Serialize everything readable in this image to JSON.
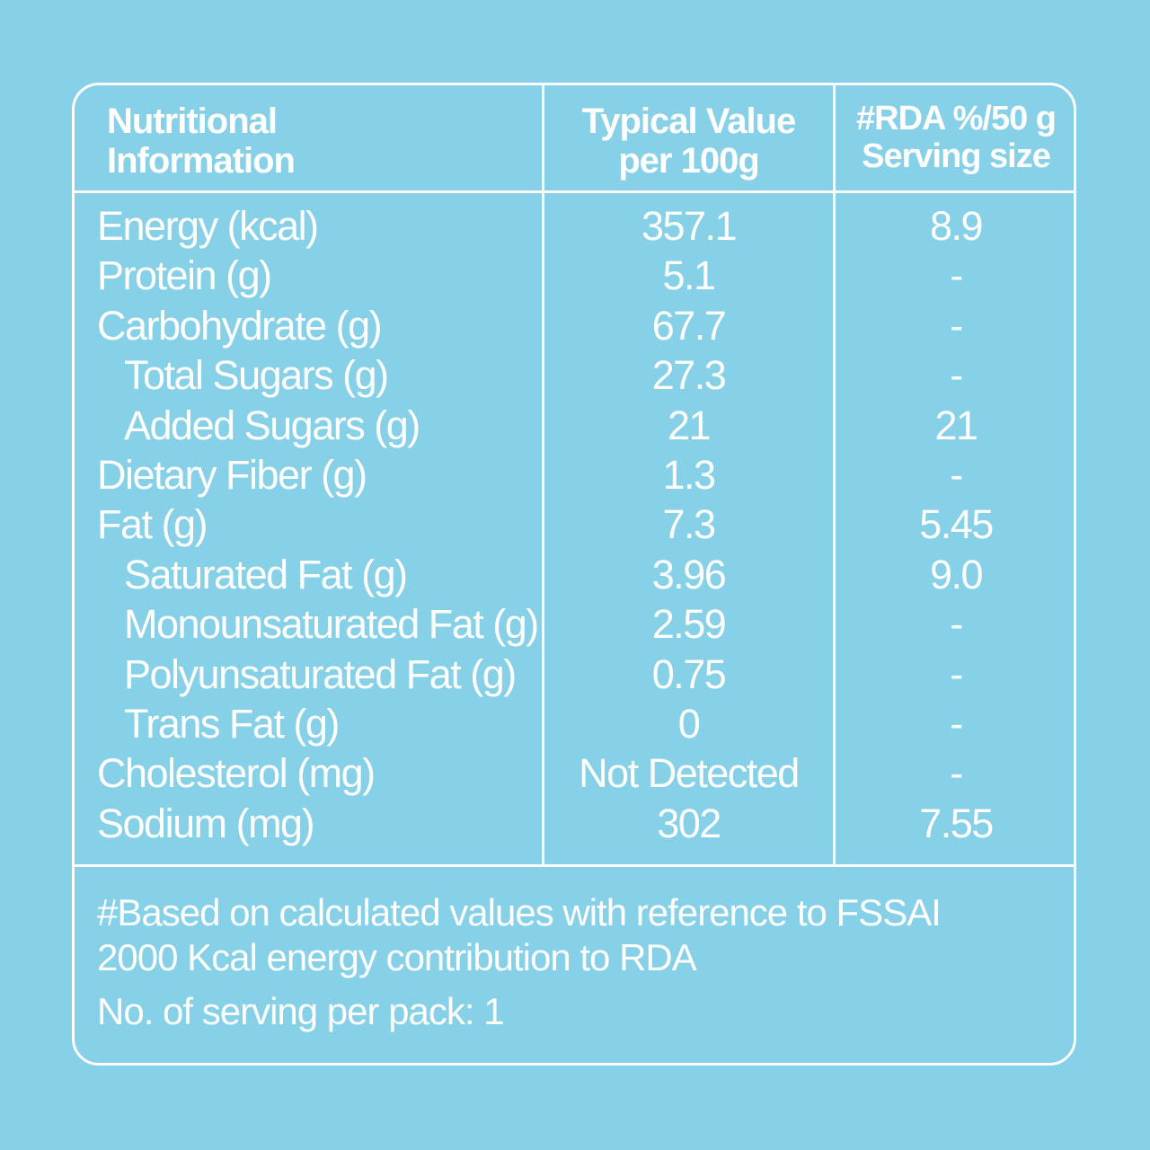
{
  "header": {
    "col1": [
      "Nutritional",
      "Information"
    ],
    "col2": [
      "Typical Value",
      "per 100g"
    ],
    "col3": [
      "#RDA %/50 g",
      "Serving size"
    ]
  },
  "rows": [
    {
      "name": "Energy (kcal)",
      "value": "357.1",
      "rda": "8.9",
      "indent": false
    },
    {
      "name": "Protein (g)",
      "value": "5.1",
      "rda": "-",
      "indent": false
    },
    {
      "name": "Carbohydrate (g)",
      "value": "67.7",
      "rda": "-",
      "indent": false
    },
    {
      "name": "Total Sugars (g)",
      "value": "27.3",
      "rda": "-",
      "indent": true
    },
    {
      "name": "Added Sugars (g)",
      "value": "21",
      "rda": "21",
      "indent": true
    },
    {
      "name": "Dietary Fiber (g)",
      "value": "1.3",
      "rda": "-",
      "indent": false
    },
    {
      "name": "Fat (g)",
      "value": "7.3",
      "rda": "5.45",
      "indent": false
    },
    {
      "name": "Saturated Fat (g)",
      "value": "3.96",
      "rda": "9.0",
      "indent": true
    },
    {
      "name": "Monounsaturated Fat (g)",
      "value": "2.59",
      "rda": "-",
      "indent": true
    },
    {
      "name": "Polyunsaturated Fat (g)",
      "value": "0.75",
      "rda": "-",
      "indent": true
    },
    {
      "name": "Trans Fat (g)",
      "value": "0",
      "rda": "-",
      "indent": true
    },
    {
      "name": "Cholesterol (mg)",
      "value": "Not Detected",
      "rda": "-",
      "indent": false
    },
    {
      "name": "Sodium (mg)",
      "value": "302",
      "rda": "7.55",
      "indent": false
    }
  ],
  "footnote": {
    "line1": "#Based on calculated values with reference to FSSAI",
    "line2": "2000 Kcal energy contribution to RDA",
    "servings": "No. of serving per pack: 1"
  },
  "colors": {
    "background": "#86d0e8",
    "text": "#ffffff"
  }
}
